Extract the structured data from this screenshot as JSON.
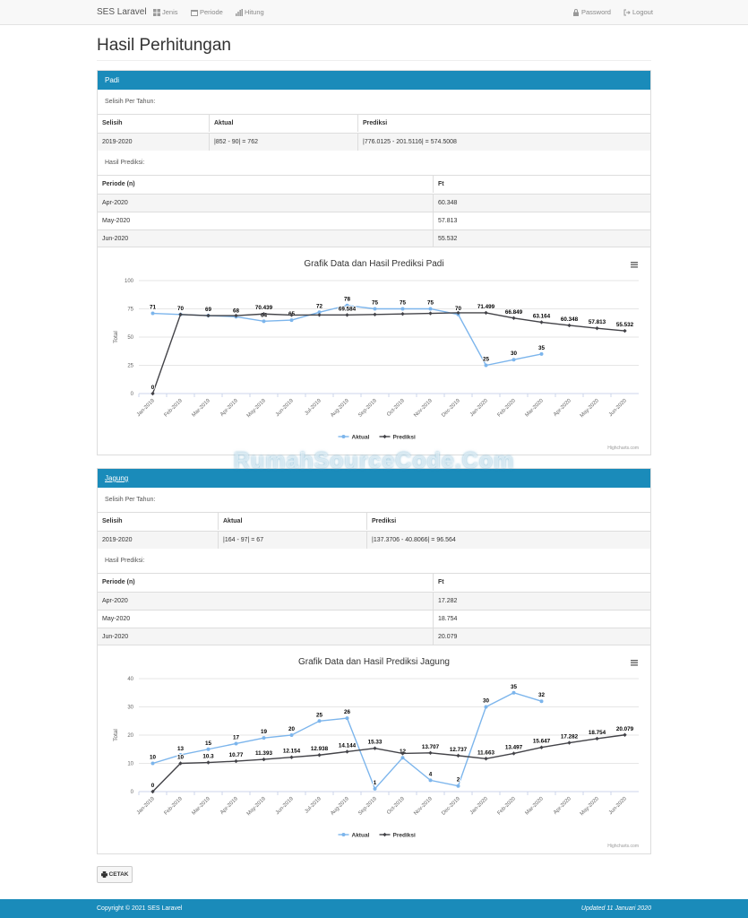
{
  "navbar": {
    "brand": "SES Laravel",
    "items": [
      {
        "label": "Jenis",
        "icon": "grid-icon"
      },
      {
        "label": "Periode",
        "icon": "calendar-icon"
      },
      {
        "label": "Hitung",
        "icon": "bar-chart-icon"
      }
    ],
    "right": [
      {
        "label": "Password",
        "icon": "lock-icon"
      },
      {
        "label": "Logout",
        "icon": "logout-icon"
      }
    ]
  },
  "watermark": "RumahSourceCode.Com",
  "page_title": "Hasil Perhitungan",
  "panels": [
    {
      "title": "Padi",
      "selisih_label": "Selisih Per Tahun:",
      "selisih_headers": [
        "Selisih",
        "Aktual",
        "Prediksi"
      ],
      "selisih_row": [
        "2019-2020",
        "|852 - 90| = 762",
        "|776.0125 - 201.5116| = 574.5008"
      ],
      "hasil_label": "Hasil Prediksi:",
      "hasil_headers": [
        "Periode (n)",
        "Ft"
      ],
      "hasil_rows": [
        [
          "Apr-2020",
          "60.348"
        ],
        [
          "May-2020",
          "57.813"
        ],
        [
          "Jun-2020",
          "55.532"
        ]
      ],
      "credits": "Highcharts.com"
    },
    {
      "title": "Jagung",
      "selisih_label": "Selisih Per Tahun:",
      "selisih_headers": [
        "Selisih",
        "Aktual",
        "Prediksi"
      ],
      "selisih_row": [
        "2019-2020",
        "|164 - 97| = 67",
        "|137.3706 - 40.8066| = 96.564"
      ],
      "hasil_label": "Hasil Prediksi:",
      "hasil_headers": [
        "Periode (n)",
        "Ft"
      ],
      "hasil_rows": [
        [
          "Apr-2020",
          "17.282"
        ],
        [
          "May-2020",
          "18.754"
        ],
        [
          "Jun-2020",
          "20.079"
        ]
      ],
      "credits": "Highcharts.com"
    }
  ],
  "chart_data": [
    {
      "type": "line",
      "title": "Grafik Data dan Hasil Prediksi Padi",
      "ylabel": "Total",
      "ylim": [
        0,
        100
      ],
      "yticks": [
        0,
        25,
        50,
        75,
        100
      ],
      "categories": [
        "Jan-2019",
        "Feb-2019",
        "Mar-2019",
        "Apr-2019",
        "May-2019",
        "Jun-2019",
        "Jul-2019",
        "Aug-2019",
        "Sep-2019",
        "Oct-2019",
        "Nov-2019",
        "Dec-2019",
        "Jan-2020",
        "Feb-2020",
        "Mar-2020",
        "Apr-2020",
        "May-2020",
        "Jun-2020"
      ],
      "series": [
        {
          "name": "Aktual",
          "color": "#7cb5ec",
          "values": [
            71,
            70,
            69,
            68,
            64,
            65,
            72,
            78,
            75,
            75,
            75,
            70,
            25,
            30,
            35,
            null,
            null,
            null
          ],
          "labels": [
            "71",
            "70",
            "69",
            "68",
            "64",
            "65",
            "72",
            "78",
            "75",
            "75",
            "75",
            "70",
            "25",
            "30",
            "35",
            null,
            null,
            null
          ]
        },
        {
          "name": "Prediksi",
          "color": "#434348",
          "values": [
            0,
            70,
            69,
            69,
            70.439,
            69.5,
            69.6,
            69.584,
            70,
            70.5,
            71,
            71.499,
            71.499,
            66.849,
            63.164,
            60.348,
            57.813,
            55.532
          ],
          "labels": [
            "0",
            null,
            null,
            null,
            "70.439",
            null,
            null,
            "69.584",
            null,
            null,
            null,
            null,
            "71.499",
            "66.849",
            "63.164",
            "60.348",
            "57.813",
            "55.532"
          ]
        }
      ],
      "legend": "bottom-center",
      "grid": true
    },
    {
      "type": "line",
      "title": "Grafik Data dan Hasil Prediksi Jagung",
      "ylabel": "Total",
      "ylim": [
        0,
        40
      ],
      "yticks": [
        0,
        10,
        20,
        30,
        40
      ],
      "categories": [
        "Jan-2019",
        "Feb-2019",
        "Mar-2019",
        "Apr-2019",
        "May-2019",
        "Jun-2019",
        "Jul-2019",
        "Aug-2019",
        "Sep-2019",
        "Oct-2019",
        "Nov-2019",
        "Dec-2019",
        "Jan-2020",
        "Feb-2020",
        "Mar-2020",
        "Apr-2020",
        "May-2020",
        "Jun-2020"
      ],
      "series": [
        {
          "name": "Aktual",
          "color": "#7cb5ec",
          "values": [
            10,
            13,
            15,
            17,
            19,
            20,
            25,
            26,
            1,
            12,
            4,
            2,
            30,
            35,
            32,
            null,
            null,
            null
          ],
          "labels": [
            "10",
            "13",
            "15",
            "17",
            "19",
            "20",
            "25",
            "26",
            "1",
            "12",
            "4",
            "2",
            "30",
            "35",
            "32",
            null,
            null,
            null
          ]
        },
        {
          "name": "Prediksi",
          "color": "#434348",
          "values": [
            0,
            10,
            10.3,
            10.77,
            11.393,
            12.154,
            12.938,
            14.144,
            15.33,
            13.5,
            13.707,
            12.737,
            11.663,
            13.497,
            15.647,
            17.282,
            18.754,
            20.079
          ],
          "labels": [
            "0",
            "10",
            "10.3",
            "10.77",
            "11.393",
            "12.154",
            "12.938",
            "14.144",
            "15.33",
            null,
            "13.707",
            "12.737",
            "11.663",
            "13.497",
            "15.647",
            "17.282",
            "18.754",
            "20.079"
          ]
        }
      ],
      "legend": "bottom-center",
      "grid": true
    }
  ],
  "button_cetak": "CETAK",
  "footer": {
    "left": "Copyright © 2021 SES Laravel",
    "right": "Updated 11 Januari 2020"
  }
}
